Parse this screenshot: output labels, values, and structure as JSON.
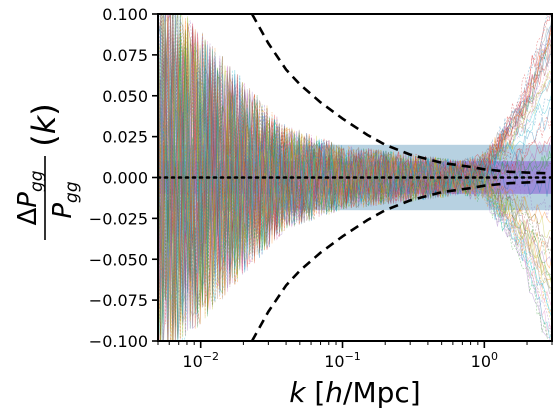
{
  "chart_data": {
    "type": "line",
    "title": "",
    "xlabel": "k [h/Mpc]",
    "ylabel": "ΔP_gg/P_gg(k)",
    "xscale": "log",
    "xlim": [
      0.005,
      3.0
    ],
    "ylim": [
      -0.1,
      0.1
    ],
    "grid": false,
    "legend": "none",
    "x_tick_labels": [
      {
        "value": 0.01,
        "base": "10",
        "exp": "−2"
      },
      {
        "value": 0.1,
        "base": "10",
        "exp": "−1"
      },
      {
        "value": 1,
        "base": "10",
        "exp": "0"
      }
    ],
    "y_tick_labels": [
      {
        "value": 0.1,
        "label": "0.100"
      },
      {
        "value": 0.075,
        "label": "0.075"
      },
      {
        "value": 0.05,
        "label": "0.050"
      },
      {
        "value": 0.025,
        "label": "0.025"
      },
      {
        "value": 0.0,
        "label": "0.000"
      },
      {
        "value": -0.025,
        "label": "−0.025"
      },
      {
        "value": -0.05,
        "label": "−0.050"
      },
      {
        "value": -0.075,
        "label": "−0.075"
      },
      {
        "value": -0.1,
        "label": "−0.100"
      }
    ],
    "bands": [
      {
        "y": [
          -0.02,
          0.02
        ],
        "color": "#1f6fa3",
        "opacity": 0.32
      },
      {
        "y": [
          -0.01,
          0.01
        ],
        "color": "#8a5bd6",
        "opacity": 0.55
      }
    ],
    "zero_line": {
      "y": 0,
      "style": "dotted",
      "color": "#000000"
    },
    "error_envelope": {
      "style": "dashed",
      "color": "#000000",
      "points": [
        {
          "k": 0.023,
          "err": 0.1
        },
        {
          "k": 0.03,
          "err": 0.082
        },
        {
          "k": 0.04,
          "err": 0.066
        },
        {
          "k": 0.05,
          "err": 0.057
        },
        {
          "k": 0.07,
          "err": 0.046
        },
        {
          "k": 0.1,
          "err": 0.036
        },
        {
          "k": 0.15,
          "err": 0.026
        },
        {
          "k": 0.2,
          "err": 0.02
        },
        {
          "k": 0.3,
          "err": 0.014
        },
        {
          "k": 0.5,
          "err": 0.009
        },
        {
          "k": 0.8,
          "err": 0.0065
        },
        {
          "k": 1.0,
          "err": 0.005
        },
        {
          "k": 1.5,
          "err": 0.0035
        },
        {
          "k": 2.0,
          "err": 0.003
        },
        {
          "k": 3.0,
          "err": 0.0025
        }
      ]
    },
    "realizations": {
      "count": 60,
      "description_of_spread": "noise amplitude vs k",
      "spread": [
        {
          "k": 0.005,
          "amp": 0.12
        },
        {
          "k": 0.01,
          "amp": 0.09
        },
        {
          "k": 0.02,
          "amp": 0.06
        },
        {
          "k": 0.04,
          "amp": 0.032
        },
        {
          "k": 0.1,
          "amp": 0.02
        },
        {
          "k": 0.3,
          "amp": 0.015
        },
        {
          "k": 0.8,
          "amp": 0.01
        },
        {
          "k": 1.0,
          "amp": 0.008
        },
        {
          "k": 3.0,
          "amp": 0.006
        }
      ],
      "highk_drift": [
        {
          "k": 0.7,
          "max_drift": 0.0
        },
        {
          "k": 1.0,
          "max_drift": 0.01
        },
        {
          "k": 1.5,
          "max_drift": 0.035
        },
        {
          "k": 2.0,
          "max_drift": 0.06
        },
        {
          "k": 3.0,
          "max_drift": 0.11
        }
      ],
      "palette": [
        "#1f77b4",
        "#ff7f0e",
        "#2ca02c",
        "#d62728",
        "#9467bd",
        "#8c564b",
        "#e377c2",
        "#7f7f7f",
        "#bcbd22",
        "#17becf"
      ]
    }
  }
}
